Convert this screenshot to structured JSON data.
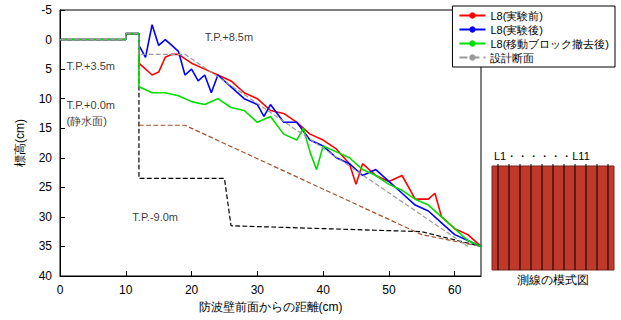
{
  "chart_data": {
    "type": "line",
    "x_label": "防波壁前面からの距離(cm)",
    "y_label": "標高(cm)",
    "xlim": [
      0,
      64
    ],
    "xticks": [
      0,
      10,
      20,
      30,
      40,
      50,
      60
    ],
    "ylim": [
      -5,
      40
    ],
    "yticks": [
      -5,
      0,
      5,
      10,
      15,
      20,
      25,
      30,
      35,
      40
    ],
    "y_inverted": true,
    "grid": false,
    "legend": "upper right",
    "series": [
      {
        "name": "L8(実験前)",
        "color": "#ff0000",
        "line_style": "solid",
        "x": [
          0,
          10,
          10,
          12,
          12,
          14,
          15,
          16,
          17,
          18,
          20,
          22,
          24,
          26,
          28,
          30,
          32,
          34,
          36,
          38,
          40,
          42,
          44,
          45,
          46,
          48,
          50,
          52,
          54,
          56,
          57,
          58,
          60,
          62,
          64
        ],
        "values": [
          0,
          0,
          -1,
          -1,
          4,
          6,
          5.5,
          3,
          2.5,
          2.5,
          4,
          5,
          6,
          7,
          9,
          10,
          12,
          12.5,
          14,
          16,
          17,
          18.5,
          21,
          24.5,
          21,
          23,
          24,
          23,
          27,
          27,
          26,
          30,
          32,
          33,
          35
        ]
      },
      {
        "name": "L8(実験後)",
        "color": "#0000ff",
        "line_style": "solid",
        "x": [
          0,
          10,
          10,
          12,
          12,
          13,
          14,
          15,
          16,
          17,
          18,
          19,
          20,
          21,
          22,
          23,
          24,
          26,
          28,
          30,
          31,
          32,
          34,
          36,
          38,
          40,
          42,
          44,
          46,
          48,
          50,
          52,
          54,
          56,
          58,
          60,
          62,
          64
        ],
        "values": [
          0,
          0,
          -1,
          -1,
          1,
          3,
          -2.5,
          1,
          0,
          1,
          2,
          6,
          5,
          7,
          6,
          9,
          6,
          8,
          10,
          11,
          13,
          11,
          14,
          14,
          17,
          18,
          20,
          21,
          23,
          22,
          24,
          26,
          28,
          29,
          31,
          33,
          34,
          35
        ]
      },
      {
        "name": "L8(移動ブロック撤去後)",
        "color": "#00dd00",
        "line_style": "solid",
        "x": [
          0,
          10,
          10,
          12,
          12,
          14,
          16,
          18,
          20,
          22,
          24,
          26,
          28,
          30,
          32,
          34,
          36,
          37,
          38,
          39,
          40,
          42,
          44,
          46,
          48,
          50,
          52,
          54,
          56,
          58,
          60,
          62,
          64
        ],
        "values": [
          0,
          0,
          -1,
          -1,
          8,
          9,
          9,
          9.5,
          10.5,
          11,
          10,
          11.5,
          12,
          14,
          13,
          16,
          17,
          15,
          19,
          22,
          18,
          19,
          20,
          22,
          23,
          24.5,
          25.5,
          27,
          28,
          30,
          32,
          34,
          35
        ]
      },
      {
        "name": "設計断面",
        "color": "#999999",
        "line_style": "dashed",
        "x": [
          0,
          10,
          10,
          12,
          12,
          19,
          62
        ],
        "values": [
          0,
          0,
          -1,
          -1,
          2.5,
          2.5,
          35
        ]
      },
      {
        "color": "#000000",
        "line_style": "dashed",
        "x": [
          0,
          10,
          10,
          12,
          12,
          25,
          26,
          55,
          64
        ],
        "values": [
          0,
          0,
          -1,
          -1,
          23.5,
          23.5,
          31.5,
          32.5,
          35
        ]
      },
      {
        "color": "#a0522d",
        "line_style": "dashed",
        "x": [
          12,
          19,
          55,
          64
        ],
        "values": [
          14.5,
          14.5,
          33,
          35
        ]
      }
    ],
    "annotations": [
      {
        "text": "T.P.+8.5m",
        "x": 22,
        "y": -0.5
      },
      {
        "text": "T.P.+3.5m",
        "x": 1,
        "y": 4.5
      },
      {
        "text": "T.P.+0.0m",
        "x": 1,
        "y": 11
      },
      {
        "text": "(静水面)",
        "x": 1,
        "y": 13.8
      },
      {
        "text": "T.P.-9.0m",
        "x": 11,
        "y": 30
      }
    ],
    "inset": {
      "lines_label": "L1・・・・・・L11",
      "caption": "測線の模式図"
    }
  }
}
